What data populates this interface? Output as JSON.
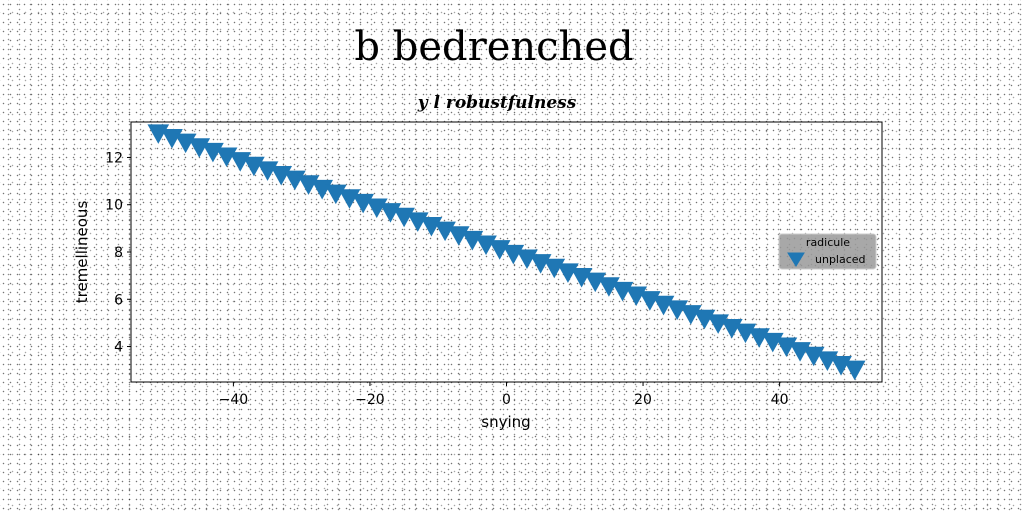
{
  "chart_data": {
    "type": "scatter",
    "title": "b bedrenched",
    "subtitle": "y l robustfulness",
    "xlabel": "snying",
    "ylabel": "tremellineous",
    "xlim": [
      -55,
      55
    ],
    "ylim": [
      2.5,
      13.5
    ],
    "xticks": [
      -40,
      -20,
      0,
      20,
      40
    ],
    "yticks": [
      4,
      6,
      8,
      10,
      12
    ],
    "grid": false,
    "legend": {
      "title": "radicule",
      "placement": "center-right"
    },
    "series": [
      {
        "name": "unplaced",
        "marker": "triangle-down",
        "color": "#1f77b4",
        "x_start": -51,
        "x_end": 51,
        "y_start": 13,
        "y_end": 3,
        "count": 52
      }
    ]
  }
}
